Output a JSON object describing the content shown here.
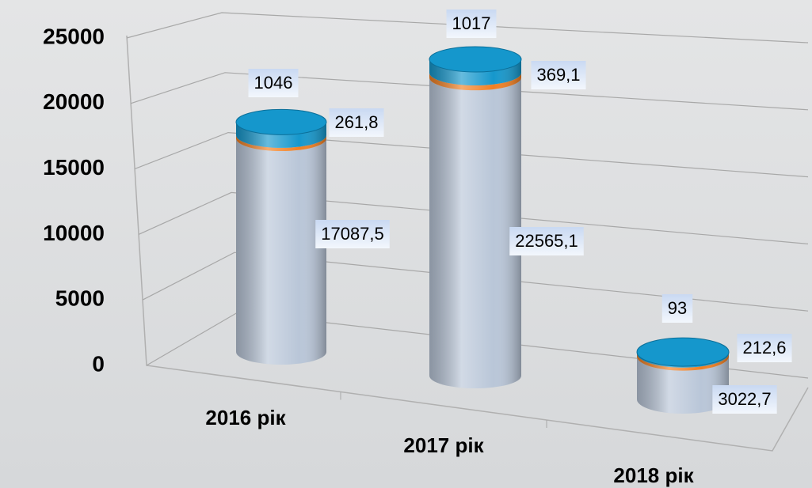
{
  "chart_data": {
    "type": "bar3d_stacked",
    "categories": [
      "2016 рік",
      "2017 рік",
      "2018 рік"
    ],
    "series": [
      {
        "color": "#b9c6d8",
        "values": [
          17087.5,
          22565.1,
          3022.7
        ],
        "value_labels": [
          "17087,5",
          "22565,1",
          "3022,7"
        ]
      },
      {
        "color": "#f07f22",
        "values": [
          261.8,
          369.1,
          212.6
        ],
        "value_labels": [
          "261,8",
          "369,1",
          "212,6"
        ]
      },
      {
        "color": "#1597cc",
        "values": [
          1046,
          1017,
          93
        ]
      }
    ],
    "ylim": [
      0,
      25000
    ],
    "yticks": [
      0,
      5000,
      10000,
      15000,
      20000,
      25000
    ],
    "grid": true
  }
}
